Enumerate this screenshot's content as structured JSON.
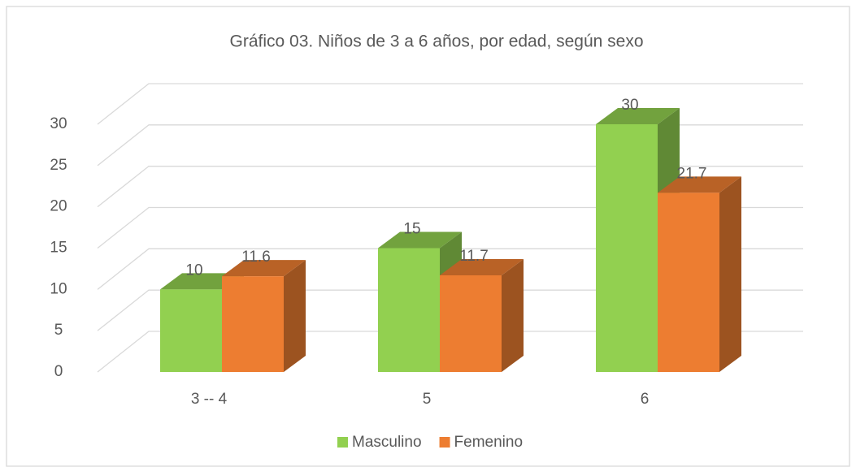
{
  "chart_data": {
    "type": "bar3d",
    "title": "Gráfico 03. Niños de 3 a 6 años, por edad, según sexo",
    "categories": [
      "3 -- 4",
      "5",
      "6"
    ],
    "series": [
      {
        "name": "Masculino",
        "color": "#92d050",
        "values": [
          10,
          15,
          30
        ]
      },
      {
        "name": "Femenino",
        "color": "#ed7d31",
        "values": [
          11.6,
          11.7,
          21.7
        ]
      }
    ],
    "ylim": [
      0,
      30
    ],
    "yticks": [
      0,
      5,
      10,
      15,
      20,
      25,
      30
    ],
    "grid": true,
    "legend": "bottom"
  }
}
